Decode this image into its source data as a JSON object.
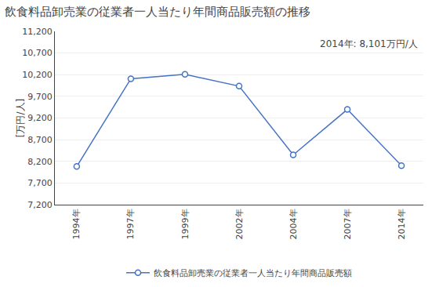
{
  "chart_data": {
    "type": "line",
    "title": "飲食料品卸売業の従業者一人当たり年間商品販売額の推移",
    "ylabel": "[万円/人]",
    "annotation": "2014年: 8,101万円/人",
    "categories": [
      "1994年",
      "1997年",
      "1999年",
      "2002年",
      "2004年",
      "2007年",
      "2014年"
    ],
    "series": [
      {
        "name": "飲食料品卸売業の従業者一人当たり年間商品販売額",
        "color": "#4472C4",
        "marker": "circle",
        "values": [
          8082,
          10107,
          10208,
          9936,
          8349,
          9398,
          8101
        ]
      }
    ],
    "ylim": [
      7200,
      11200
    ],
    "yticks": [
      {
        "value": 7200,
        "label": "7,200"
      },
      {
        "value": 7700,
        "label": "7,700"
      },
      {
        "value": 8200,
        "label": "8,200"
      },
      {
        "value": 8700,
        "label": "8,700"
      },
      {
        "value": 9200,
        "label": "9,200"
      },
      {
        "value": 9700,
        "label": "9,700"
      },
      {
        "value": 10200,
        "label": "10,200"
      },
      {
        "value": 10700,
        "label": "10,700"
      },
      {
        "value": 11200,
        "label": "11,200"
      }
    ],
    "grid": true,
    "legend": "bottom"
  }
}
